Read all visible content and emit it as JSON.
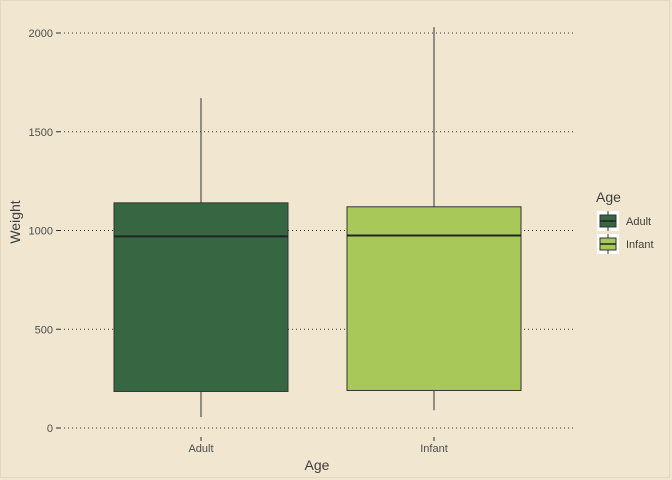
{
  "chart_data": {
    "type": "boxplot",
    "xlabel": "Age",
    "ylabel": "Weight",
    "ylim": [
      0,
      2000
    ],
    "yticks": [
      0,
      500,
      1000,
      1500,
      2000
    ],
    "categories": [
      "Adult",
      "Infant"
    ],
    "grid": "horizontal dotted",
    "legend": {
      "title": "Age",
      "placement": "right",
      "entries": [
        "Adult",
        "Infant"
      ]
    },
    "series": [
      {
        "name": "Adult",
        "color": "#366742",
        "min": 55,
        "q1": 185,
        "median": 970,
        "q3": 1140,
        "max": 1670
      },
      {
        "name": "Infant",
        "color": "#a8c95a",
        "min": 90,
        "q1": 190,
        "median": 975,
        "q3": 1120,
        "max": 2030
      }
    ],
    "colors": {
      "background": "#f1e7d0",
      "grid": "#333333",
      "outline": "#333333"
    }
  }
}
